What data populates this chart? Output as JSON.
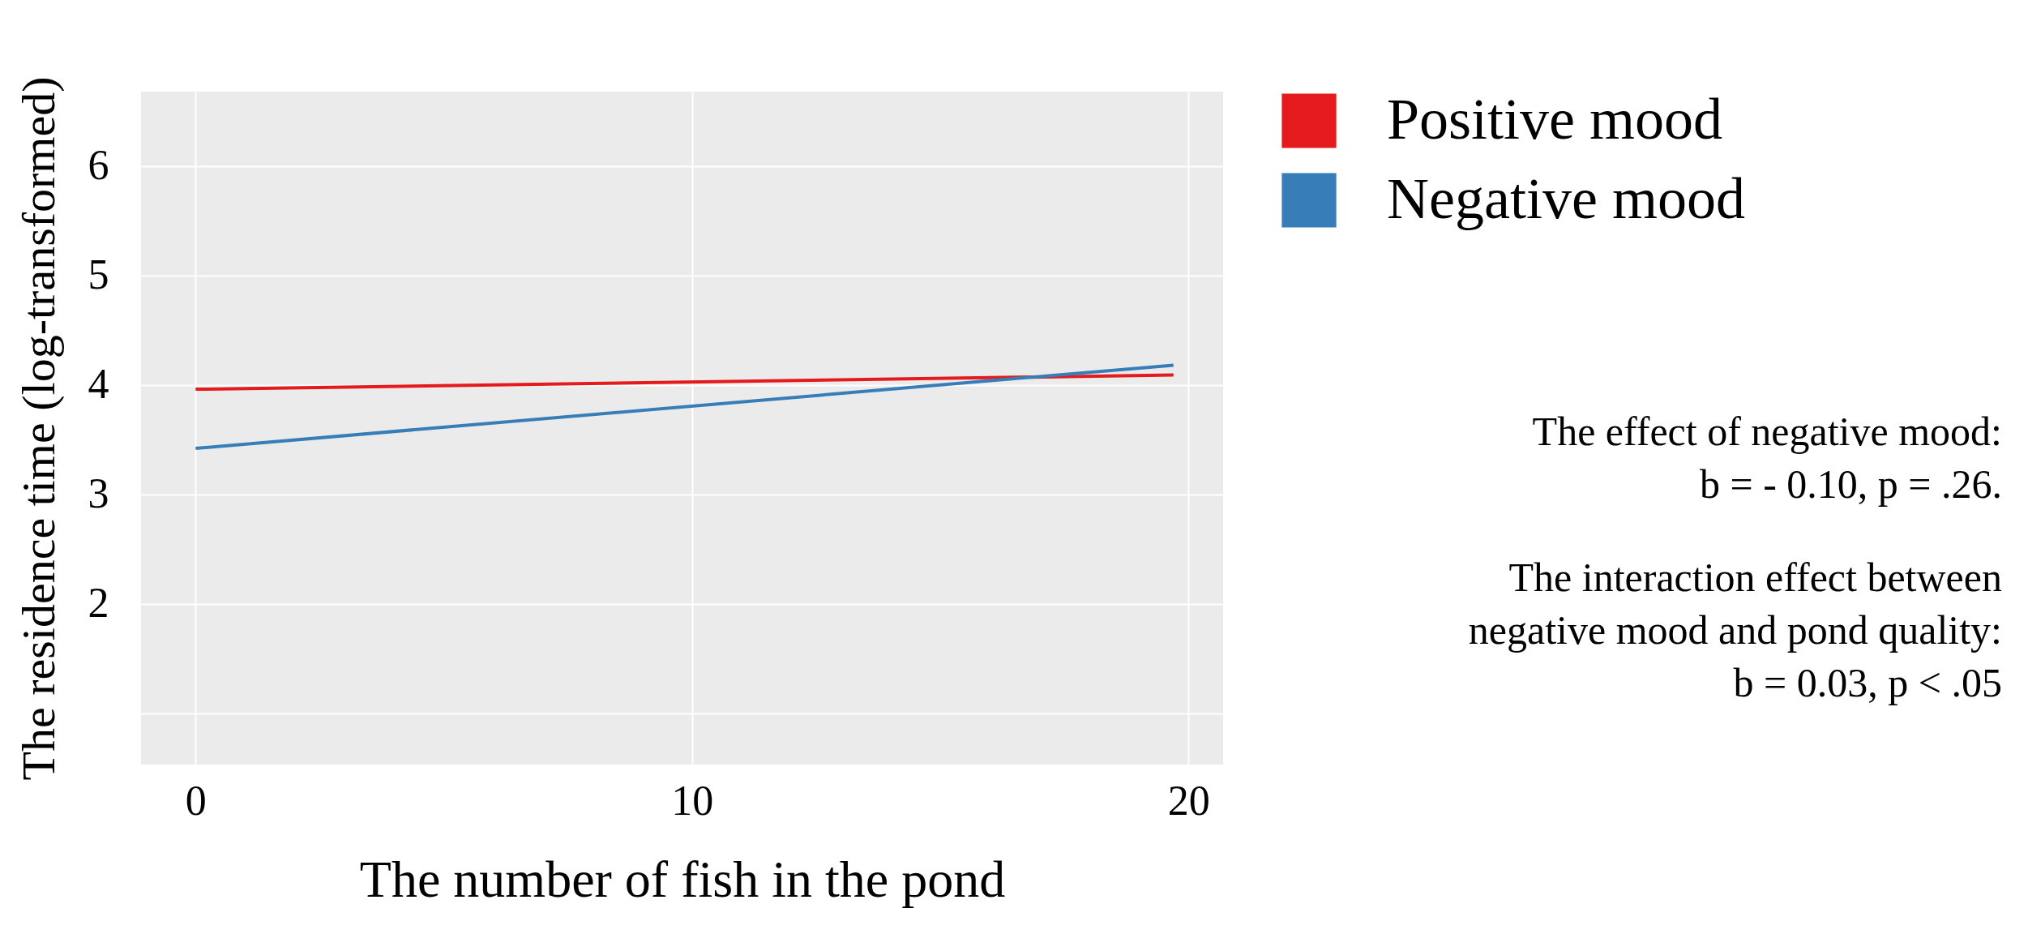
{
  "chart_data": {
    "type": "line",
    "xlabel": "The number of fish in the pond",
    "ylabel": "The residence time (log-transformed)",
    "x": [
      0,
      19.7
    ],
    "series": [
      {
        "name": "Positive mood",
        "color": "#e41a1c",
        "values": [
          3.96,
          4.09
        ]
      },
      {
        "name": "Negative mood",
        "color": "#377eb8",
        "values": [
          3.42,
          4.18
        ]
      }
    ],
    "xlim": [
      -1.1,
      20.7
    ],
    "xticks": [
      0,
      10,
      20
    ],
    "ylim": [
      0.53,
      6.68
    ],
    "yticks": [
      {
        "value": 1,
        "label": null
      },
      2,
      3,
      4,
      5,
      6
    ],
    "grid": true,
    "legend": "right",
    "marker": "none",
    "line_style": "solid",
    "annotations": [
      "The effect of negative mood:\nb = - 0.10, p = .26.",
      "The interaction effect between\nnegative mood and pond quality:\nb = 0.03, p < .05"
    ]
  }
}
